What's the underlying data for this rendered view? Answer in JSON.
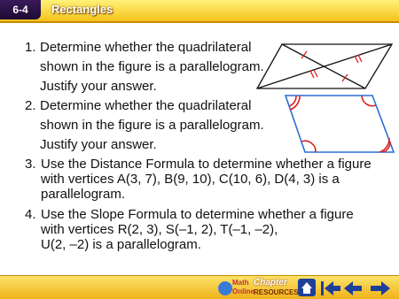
{
  "header": {
    "lesson": "6-4",
    "title": "Rectangles"
  },
  "items": [
    {
      "number": "1.",
      "lines": [
        "Determine whether the quadrilateral",
        "shown in the figure is a parallelogram.",
        "Justify your answer."
      ]
    },
    {
      "number": "2.",
      "lines": [
        "Determine whether the quadrilateral",
        "shown in the figure is a parallelogram.",
        "Justify your answer."
      ]
    },
    {
      "number": "3.",
      "lines": [
        "Use the Distance Formula to determine whether a figure",
        "with vertices A(3, 7), B(9, 10), C(10, 6), D(4, 3) is a",
        "parallelogram."
      ]
    },
    {
      "number": "4.",
      "lines": [
        "Use the Slope Formula to determine whether a figure",
        "with vertices R(2, 3), S(–1, 2), T(–1, –2),",
        "U(2, –2) is a parallelogram."
      ]
    }
  ],
  "footer": {
    "math": "Math",
    "online": "Online",
    "chapter": "Chapter",
    "resources": "RESOURCES"
  }
}
